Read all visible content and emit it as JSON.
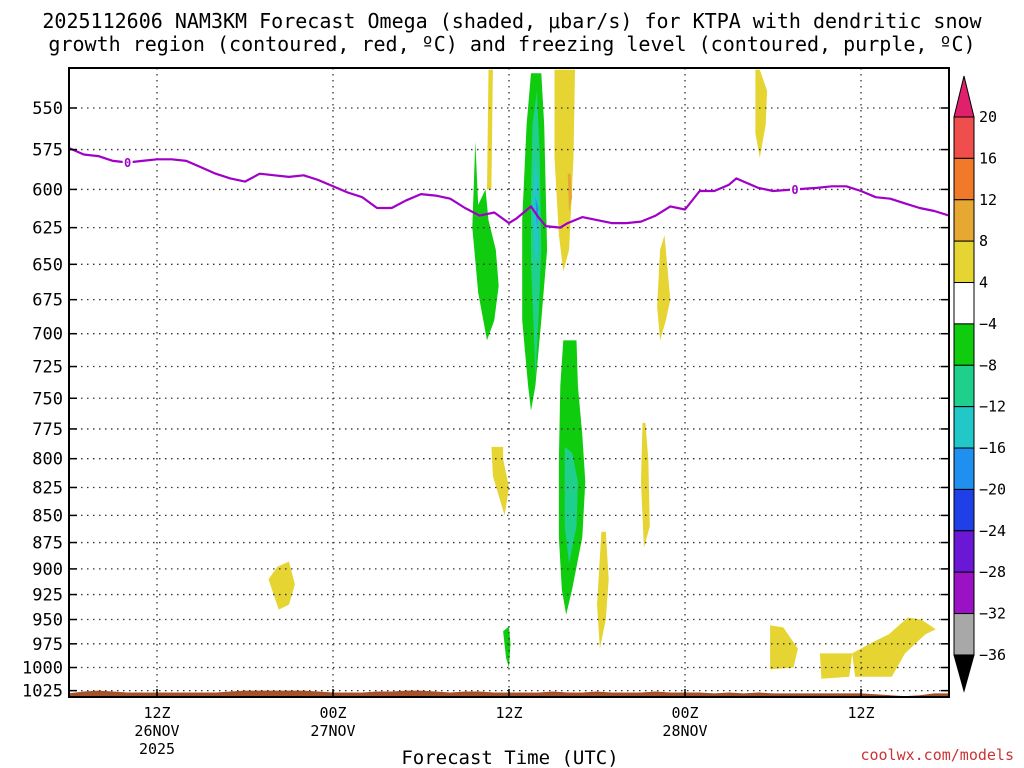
{
  "chart_data": {
    "type": "contour",
    "title_line1": "2025112606 NAM3KM Forecast Omega (shaded, μbar/s) for KTPA with dendritic snow",
    "title_line2": "growth region (contoured, red, ºC) and freezing level (contoured, purple, ºC)",
    "xlabel": "Forecast Time (UTC)",
    "credit": "coolwx.com/models",
    "x_range_hours": [
      0,
      60
    ],
    "pressure_range": [
      527,
      1032
    ],
    "y_ticks": [
      550,
      575,
      600,
      625,
      650,
      675,
      700,
      725,
      750,
      775,
      800,
      825,
      850,
      875,
      900,
      925,
      950,
      975,
      1000,
      1025
    ],
    "y_tick_labels": [
      "550",
      "575",
      "600",
      "625",
      "650",
      "675",
      "700",
      "725",
      "750",
      "775",
      "800",
      "825",
      "850",
      "875",
      "900",
      "925",
      "950",
      "975",
      "1000",
      "1025"
    ],
    "x_ticks": [
      {
        "hour": 6,
        "line1": "12Z",
        "line2": "26NOV",
        "line3": "2025"
      },
      {
        "hour": 18,
        "line1": "00Z",
        "line2": "27NOV",
        "line3": ""
      },
      {
        "hour": 30,
        "line1": "12Z",
        "line2": "",
        "line3": ""
      },
      {
        "hour": 42,
        "line1": "00Z",
        "line2": "28NOV",
        "line3": ""
      },
      {
        "hour": 54,
        "line1": "12Z",
        "line2": "",
        "line3": ""
      }
    ],
    "colorbar_levels": [
      20,
      16,
      12,
      8,
      4,
      -4,
      -8,
      -12,
      -16,
      -20,
      -24,
      -28,
      -32,
      -36
    ],
    "colorbar_labels": [
      "20",
      "16",
      "12",
      "8",
      "4",
      "−4",
      "−8",
      "−12",
      "−16",
      "−20",
      "−24",
      "−28",
      "−32",
      "−36"
    ],
    "colorbar_colors": [
      "#f04d4d",
      "#f07a2a",
      "#e6a833",
      "#e6d433",
      "#ffffff",
      "#0fcc0f",
      "#1fcf8c",
      "#22c8c8",
      "#1f90f0",
      "#1f40e6",
      "#6a17d6",
      "#9a12c4",
      "#a8a8a8"
    ],
    "colorbar_top_color": "#e0206a",
    "colorbar_bottom_color": "#000000",
    "freezing_level": {
      "color": "#a000c8",
      "label": "0",
      "label_hours": [
        4,
        49.5
      ],
      "points": [
        [
          0,
          574
        ],
        [
          1,
          578
        ],
        [
          2,
          579
        ],
        [
          3,
          582
        ],
        [
          4,
          583
        ],
        [
          5,
          582
        ],
        [
          6,
          581
        ],
        [
          7,
          581
        ],
        [
          8,
          582
        ],
        [
          9,
          586
        ],
        [
          10,
          590
        ],
        [
          11,
          593
        ],
        [
          12,
          595
        ],
        [
          13,
          590
        ],
        [
          14,
          591
        ],
        [
          15,
          592
        ],
        [
          16,
          591
        ],
        [
          17,
          594
        ],
        [
          18,
          598
        ],
        [
          19,
          602
        ],
        [
          20,
          605
        ],
        [
          21,
          612
        ],
        [
          22,
          612
        ],
        [
          23,
          607
        ],
        [
          24,
          603
        ],
        [
          25,
          604
        ],
        [
          26,
          606
        ],
        [
          27,
          612
        ],
        [
          28,
          617
        ],
        [
          29,
          615
        ],
        [
          30,
          622
        ],
        [
          30.5,
          619
        ],
        [
          31.5,
          611
        ],
        [
          32,
          618
        ],
        [
          32.5,
          624
        ],
        [
          33.5,
          625
        ],
        [
          34,
          622
        ],
        [
          35,
          618
        ],
        [
          36,
          620
        ],
        [
          37,
          622
        ],
        [
          38,
          622
        ],
        [
          39,
          621
        ],
        [
          40,
          617
        ],
        [
          41,
          611
        ],
        [
          42,
          613
        ],
        [
          43,
          601
        ],
        [
          44,
          601
        ],
        [
          45,
          597
        ],
        [
          45.5,
          593
        ],
        [
          46,
          595
        ],
        [
          47,
          599
        ],
        [
          48,
          601
        ],
        [
          49.5,
          600
        ],
        [
          51,
          599
        ],
        [
          52,
          598
        ],
        [
          53,
          598
        ],
        [
          54,
          601
        ],
        [
          55,
          605
        ],
        [
          56,
          606
        ],
        [
          57,
          609
        ],
        [
          58,
          612
        ],
        [
          59,
          614
        ],
        [
          60,
          617
        ]
      ]
    },
    "omega_regions": [
      {
        "color": "#0fcc0f",
        "value_label": "-4 to -8",
        "points": [
          [
            27.5,
            625
          ],
          [
            27.9,
            670
          ],
          [
            28.5,
            705
          ],
          [
            29.0,
            690
          ],
          [
            29.3,
            665
          ],
          [
            29.1,
            640
          ],
          [
            28.6,
            620
          ],
          [
            28.4,
            600
          ],
          [
            27.9,
            610
          ],
          [
            27.7,
            570
          ]
        ]
      },
      {
        "color": "#0fcc0f",
        "value_label": "-4 to -8",
        "points": [
          [
            30.9,
            690
          ],
          [
            31.3,
            740
          ],
          [
            31.5,
            760
          ],
          [
            31.8,
            740
          ],
          [
            32.2,
            690
          ],
          [
            32.6,
            640
          ],
          [
            32.4,
            560
          ],
          [
            32.2,
            530
          ],
          [
            31.5,
            530
          ],
          [
            31.2,
            560
          ],
          [
            30.9,
            620
          ]
        ]
      },
      {
        "color": "#1fcf8c",
        "value_label": "-8 to -12",
        "points": [
          [
            31.5,
            650
          ],
          [
            31.7,
            700
          ],
          [
            31.8,
            735
          ],
          [
            32.0,
            690
          ],
          [
            32.2,
            640
          ],
          [
            32.1,
            580
          ],
          [
            31.9,
            540
          ],
          [
            31.6,
            560
          ],
          [
            31.5,
            600
          ]
        ]
      },
      {
        "color": "#22c8c8",
        "value_label": "-12 to -16",
        "points": [
          [
            31.6,
            610
          ],
          [
            31.8,
            650
          ],
          [
            32.0,
            640
          ],
          [
            32.0,
            600
          ],
          [
            31.8,
            580
          ]
        ]
      },
      {
        "color": "#1f90f0",
        "value_label": "-16 to -20",
        "points": [
          [
            31.8,
            605
          ],
          [
            31.9,
            625
          ],
          [
            32.0,
            612
          ]
        ]
      },
      {
        "color": "#0fcc0f",
        "value_label": "-4 to -8",
        "points": [
          [
            33.5,
            740
          ],
          [
            33.4,
            800
          ],
          [
            33.4,
            870
          ],
          [
            33.6,
            920
          ],
          [
            33.9,
            945
          ],
          [
            34.3,
            920
          ],
          [
            35.0,
            870
          ],
          [
            35.2,
            820
          ],
          [
            35.0,
            780
          ],
          [
            34.7,
            740
          ],
          [
            34.6,
            705
          ],
          [
            33.7,
            705
          ]
        ]
      },
      {
        "color": "#1fcf8c",
        "value_label": "-8 to -12",
        "points": [
          [
            33.8,
            790
          ],
          [
            33.8,
            860
          ],
          [
            34.1,
            895
          ],
          [
            34.6,
            860
          ],
          [
            34.7,
            820
          ],
          [
            34.3,
            795
          ]
        ]
      },
      {
        "color": "#0fcc0f",
        "value_label": "-4 to -8",
        "points": [
          [
            29.6,
            962
          ],
          [
            29.8,
            990
          ],
          [
            30.0,
            1000
          ],
          [
            30.1,
            975
          ],
          [
            30.0,
            957
          ]
        ]
      },
      {
        "color": "#e6d433",
        "value_label": "4 to 8",
        "points": [
          [
            28.6,
            528
          ],
          [
            28.5,
            600
          ],
          [
            28.8,
            600
          ],
          [
            28.9,
            528
          ]
        ]
      },
      {
        "color": "#e6d433",
        "value_label": "4 to 8",
        "points": [
          [
            33.1,
            528
          ],
          [
            33.1,
            580
          ],
          [
            33.4,
            630
          ],
          [
            33.7,
            655
          ],
          [
            34.1,
            640
          ],
          [
            34.4,
            580
          ],
          [
            34.5,
            528
          ]
        ]
      },
      {
        "color": "#e6a833",
        "value_label": "8 to 12",
        "points": [
          [
            34.0,
            590
          ],
          [
            34.1,
            615
          ],
          [
            34.3,
            605
          ],
          [
            34.2,
            590
          ]
        ]
      },
      {
        "color": "#e6d433",
        "value_label": "4 to 8",
        "points": [
          [
            46.8,
            528
          ],
          [
            46.8,
            565
          ],
          [
            47.1,
            580
          ],
          [
            47.5,
            560
          ],
          [
            47.6,
            540
          ],
          [
            47.1,
            528
          ]
        ]
      },
      {
        "color": "#e6d433",
        "value_label": "4 to 8",
        "points": [
          [
            40.3,
            640
          ],
          [
            40.1,
            680
          ],
          [
            40.3,
            705
          ],
          [
            40.7,
            690
          ],
          [
            41.0,
            675
          ],
          [
            40.6,
            630
          ]
        ]
      },
      {
        "color": "#e6d433",
        "value_label": "4 to 8",
        "points": [
          [
            28.8,
            790
          ],
          [
            28.9,
            815
          ],
          [
            29.7,
            850
          ],
          [
            30.0,
            825
          ],
          [
            29.6,
            800
          ],
          [
            29.6,
            790
          ]
        ]
      },
      {
        "color": "#e6d433",
        "value_label": "4 to 8",
        "points": [
          [
            39.1,
            770
          ],
          [
            39.0,
            820
          ],
          [
            39.2,
            880
          ],
          [
            39.6,
            860
          ],
          [
            39.5,
            800
          ],
          [
            39.3,
            770
          ]
        ]
      },
      {
        "color": "#e6d433",
        "value_label": "4 to 8",
        "points": [
          [
            36.3,
            865
          ],
          [
            36.0,
            935
          ],
          [
            36.2,
            980
          ],
          [
            36.6,
            950
          ],
          [
            36.8,
            910
          ],
          [
            36.6,
            865
          ]
        ]
      },
      {
        "color": "#e6d433",
        "value_label": "4 to 8",
        "points": [
          [
            13.6,
            910
          ],
          [
            14.3,
            940
          ],
          [
            15.0,
            935
          ],
          [
            15.4,
            915
          ],
          [
            15.0,
            893
          ],
          [
            14.2,
            898
          ]
        ]
      },
      {
        "color": "#e6d433",
        "value_label": "4 to 8",
        "points": [
          [
            47.8,
            956
          ],
          [
            47.8,
            1002
          ],
          [
            49.4,
            1000
          ],
          [
            49.7,
            980
          ],
          [
            48.7,
            958
          ]
        ]
      },
      {
        "color": "#e6d433",
        "value_label": "4 to 8",
        "points": [
          [
            51.2,
            985
          ],
          [
            51.3,
            1012
          ],
          [
            53.2,
            1010
          ],
          [
            53.4,
            985
          ]
        ]
      },
      {
        "color": "#e6d433",
        "value_label": "4 to 8",
        "points": [
          [
            53.4,
            985
          ],
          [
            53.6,
            1010
          ],
          [
            56.1,
            1010
          ],
          [
            57.0,
            985
          ],
          [
            58.4,
            965
          ],
          [
            59.1,
            960
          ],
          [
            58.1,
            950
          ],
          [
            57.2,
            948
          ],
          [
            55.9,
            965
          ],
          [
            54.6,
            975
          ]
        ]
      }
    ],
    "terrain": {
      "color": "#a5522a",
      "points": [
        [
          0,
          1028
        ],
        [
          1,
          1026
        ],
        [
          2,
          1025
        ],
        [
          3,
          1026
        ],
        [
          4,
          1027
        ],
        [
          5,
          1027
        ],
        [
          6,
          1027
        ],
        [
          7,
          1027
        ],
        [
          8,
          1027
        ],
        [
          9,
          1027
        ],
        [
          10,
          1027
        ],
        [
          11,
          1026
        ],
        [
          12,
          1025
        ],
        [
          13,
          1025
        ],
        [
          14,
          1025
        ],
        [
          15,
          1025
        ],
        [
          16,
          1025
        ],
        [
          17,
          1026
        ],
        [
          18,
          1027
        ],
        [
          19,
          1027
        ],
        [
          20,
          1027
        ],
        [
          21,
          1026
        ],
        [
          22,
          1026
        ],
        [
          23,
          1025
        ],
        [
          24,
          1025
        ],
        [
          25,
          1026
        ],
        [
          26,
          1027
        ],
        [
          27,
          1026
        ],
        [
          28,
          1026
        ],
        [
          29,
          1027
        ],
        [
          30,
          1027
        ],
        [
          31,
          1027
        ],
        [
          32,
          1027
        ],
        [
          33,
          1026
        ],
        [
          34,
          1027
        ],
        [
          35,
          1027
        ],
        [
          36,
          1026
        ],
        [
          37,
          1027
        ],
        [
          38,
          1027
        ],
        [
          39,
          1027
        ],
        [
          40,
          1026
        ],
        [
          41,
          1027
        ],
        [
          42,
          1027
        ],
        [
          43,
          1027
        ],
        [
          44,
          1028
        ],
        [
          45,
          1027
        ],
        [
          46,
          1028
        ],
        [
          47,
          1027
        ],
        [
          48,
          1028
        ],
        [
          49,
          1028
        ],
        [
          50,
          1028
        ],
        [
          51,
          1028
        ],
        [
          52,
          1028
        ],
        [
          53,
          1028
        ],
        [
          54,
          1028
        ],
        [
          55,
          1029
        ],
        [
          56,
          1030
        ],
        [
          57,
          1031
        ],
        [
          58,
          1030
        ],
        [
          59,
          1028
        ],
        [
          60,
          1028
        ]
      ]
    }
  }
}
